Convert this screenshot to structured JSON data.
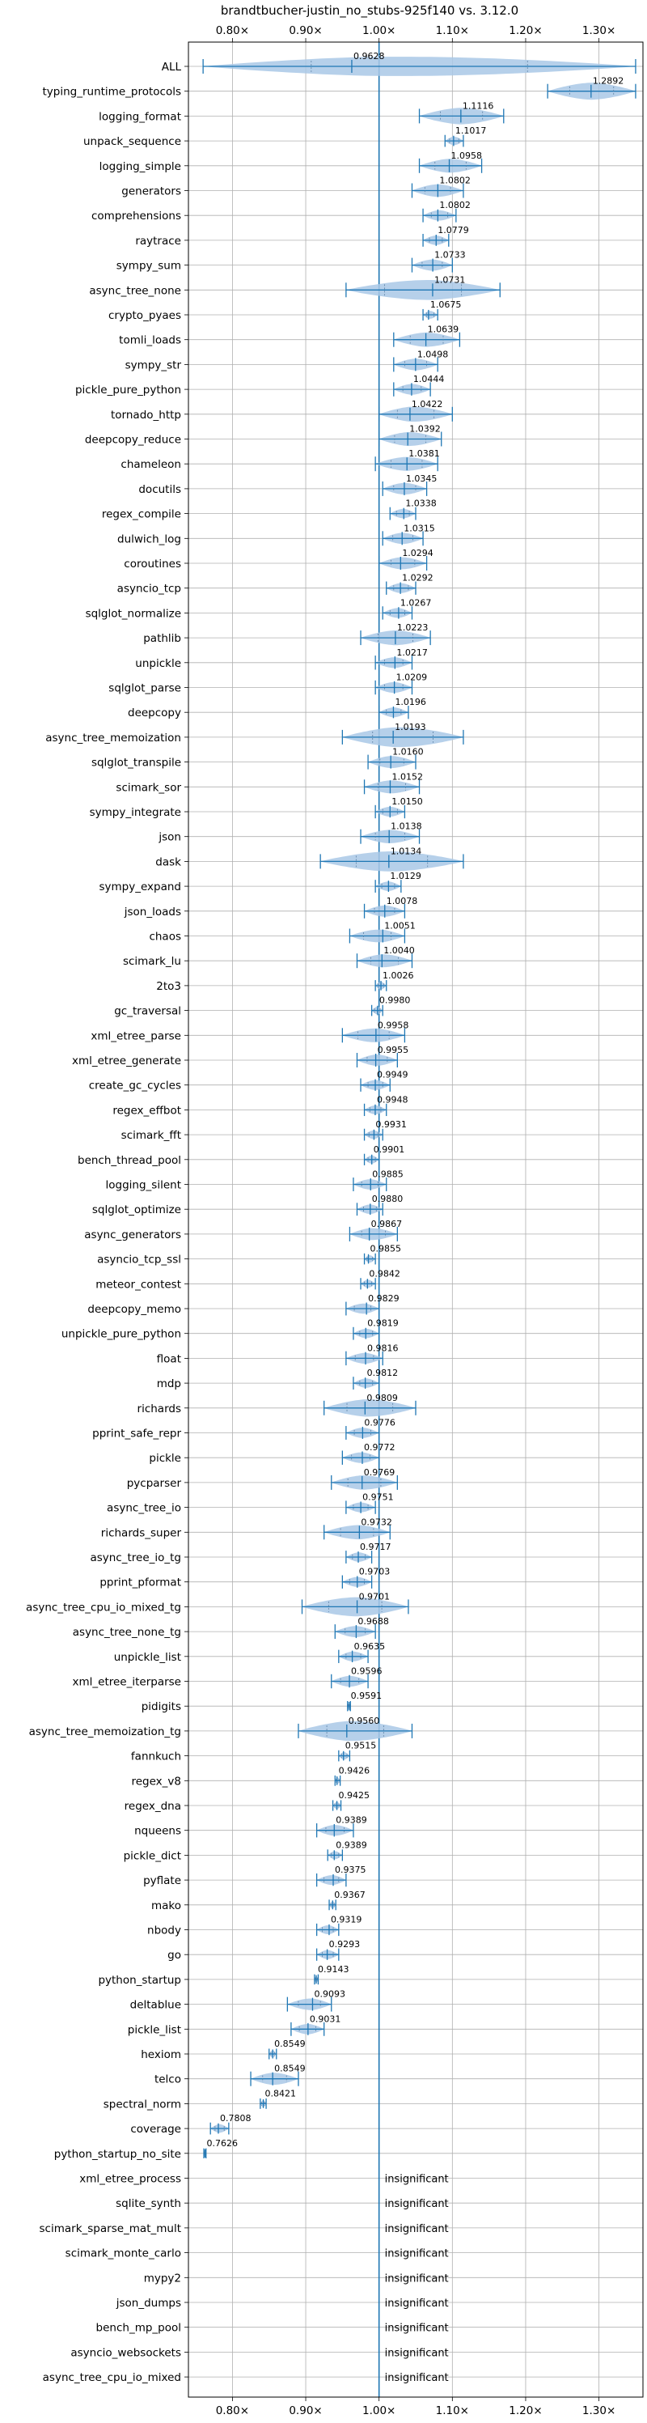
{
  "chart_data": {
    "type": "violin",
    "title": "brandtbucher-justin_no_stubs-925f140 vs. 3.12.0",
    "xlabel": "",
    "ylabel": "",
    "xlim": [
      0.74,
      1.36
    ],
    "xscale": "linear",
    "xticks": [
      0.8,
      0.9,
      1.0,
      1.1,
      1.2,
      1.3
    ],
    "xtick_labels": [
      "0.80×",
      "0.90×",
      "1.00×",
      "1.10×",
      "1.20×",
      "1.30×"
    ],
    "x_tick_axes": [
      "top",
      "bottom"
    ],
    "grid": true,
    "reference_line": 1.0,
    "colors": {
      "violin": "#a9c8e6",
      "line": "#1f77b4",
      "grid": "#b0b0b0"
    },
    "insignificant_label": "insignificant",
    "benchmarks": [
      {
        "name": "ALL",
        "value": 0.9628,
        "min": 0.76,
        "max": 1.35,
        "label": "0.9628"
      },
      {
        "name": "typing_runtime_protocols",
        "value": 1.2892,
        "min": 1.23,
        "max": 1.35,
        "label": "1.2892"
      },
      {
        "name": "logging_format",
        "value": 1.1116,
        "min": 1.055,
        "max": 1.17,
        "label": "1.1116"
      },
      {
        "name": "unpack_sequence",
        "value": 1.1017,
        "min": 1.09,
        "max": 1.115,
        "label": "1.1017"
      },
      {
        "name": "logging_simple",
        "value": 1.0958,
        "min": 1.055,
        "max": 1.14,
        "label": "1.0958"
      },
      {
        "name": "generators",
        "value": 1.0802,
        "min": 1.045,
        "max": 1.115,
        "label": "1.0802"
      },
      {
        "name": "comprehensions",
        "value": 1.0802,
        "min": 1.06,
        "max": 1.105,
        "label": "1.0802"
      },
      {
        "name": "raytrace",
        "value": 1.0779,
        "min": 1.06,
        "max": 1.095,
        "label": "1.0779"
      },
      {
        "name": "sympy_sum",
        "value": 1.0733,
        "min": 1.045,
        "max": 1.1,
        "label": "1.0733"
      },
      {
        "name": "async_tree_none",
        "value": 1.0731,
        "min": 0.955,
        "max": 1.165,
        "label": "1.0731"
      },
      {
        "name": "crypto_pyaes",
        "value": 1.0675,
        "min": 1.06,
        "max": 1.08,
        "label": "1.0675"
      },
      {
        "name": "tomli_loads",
        "value": 1.0639,
        "min": 1.02,
        "max": 1.11,
        "label": "1.0639"
      },
      {
        "name": "sympy_str",
        "value": 1.0498,
        "min": 1.02,
        "max": 1.08,
        "label": "1.0498"
      },
      {
        "name": "pickle_pure_python",
        "value": 1.0444,
        "min": 1.02,
        "max": 1.07,
        "label": "1.0444"
      },
      {
        "name": "tornado_http",
        "value": 1.0422,
        "min": 1.0,
        "max": 1.1,
        "label": "1.0422"
      },
      {
        "name": "deepcopy_reduce",
        "value": 1.0392,
        "min": 1.0,
        "max": 1.085,
        "label": "1.0392"
      },
      {
        "name": "chameleon",
        "value": 1.0381,
        "min": 0.995,
        "max": 1.08,
        "label": "1.0381"
      },
      {
        "name": "docutils",
        "value": 1.0345,
        "min": 1.005,
        "max": 1.065,
        "label": "1.0345"
      },
      {
        "name": "regex_compile",
        "value": 1.0338,
        "min": 1.015,
        "max": 1.05,
        "label": "1.0338"
      },
      {
        "name": "dulwich_log",
        "value": 1.0315,
        "min": 1.005,
        "max": 1.06,
        "label": "1.0315"
      },
      {
        "name": "coroutines",
        "value": 1.0294,
        "min": 1.0,
        "max": 1.065,
        "label": "1.0294"
      },
      {
        "name": "asyncio_tcp",
        "value": 1.0292,
        "min": 1.01,
        "max": 1.05,
        "label": "1.0292"
      },
      {
        "name": "sqlglot_normalize",
        "value": 1.0267,
        "min": 1.005,
        "max": 1.045,
        "label": "1.0267"
      },
      {
        "name": "pathlib",
        "value": 1.0223,
        "min": 0.975,
        "max": 1.07,
        "label": "1.0223"
      },
      {
        "name": "unpickle",
        "value": 1.0217,
        "min": 0.995,
        "max": 1.045,
        "label": "1.0217"
      },
      {
        "name": "sqlglot_parse",
        "value": 1.0209,
        "min": 0.995,
        "max": 1.045,
        "label": "1.0209"
      },
      {
        "name": "deepcopy",
        "value": 1.0196,
        "min": 1.0,
        "max": 1.04,
        "label": "1.0196"
      },
      {
        "name": "async_tree_memoization",
        "value": 1.0193,
        "min": 0.95,
        "max": 1.115,
        "label": "1.0193"
      },
      {
        "name": "sqlglot_transpile",
        "value": 1.016,
        "min": 0.985,
        "max": 1.05,
        "label": "1.0160"
      },
      {
        "name": "scimark_sor",
        "value": 1.0152,
        "min": 0.98,
        "max": 1.055,
        "label": "1.0152"
      },
      {
        "name": "sympy_integrate",
        "value": 1.015,
        "min": 0.995,
        "max": 1.035,
        "label": "1.0150"
      },
      {
        "name": "json",
        "value": 1.0138,
        "min": 0.975,
        "max": 1.055,
        "label": "1.0138"
      },
      {
        "name": "dask",
        "value": 1.0134,
        "min": 0.92,
        "max": 1.115,
        "label": "1.0134"
      },
      {
        "name": "sympy_expand",
        "value": 1.0129,
        "min": 0.995,
        "max": 1.03,
        "label": "1.0129"
      },
      {
        "name": "json_loads",
        "value": 1.0078,
        "min": 0.98,
        "max": 1.035,
        "label": "1.0078"
      },
      {
        "name": "chaos",
        "value": 1.0051,
        "min": 0.96,
        "max": 1.035,
        "label": "1.0051"
      },
      {
        "name": "scimark_lu",
        "value": 1.004,
        "min": 0.97,
        "max": 1.045,
        "label": "1.0040"
      },
      {
        "name": "2to3",
        "value": 1.0026,
        "min": 0.995,
        "max": 1.01,
        "label": "1.0026"
      },
      {
        "name": "gc_traversal",
        "value": 0.998,
        "min": 0.99,
        "max": 1.005,
        "label": "0.9980"
      },
      {
        "name": "xml_etree_parse",
        "value": 0.9958,
        "min": 0.95,
        "max": 1.035,
        "label": "0.9958"
      },
      {
        "name": "xml_etree_generate",
        "value": 0.9955,
        "min": 0.97,
        "max": 1.025,
        "label": "0.9955"
      },
      {
        "name": "create_gc_cycles",
        "value": 0.9949,
        "min": 0.975,
        "max": 1.015,
        "label": "0.9949"
      },
      {
        "name": "regex_effbot",
        "value": 0.9948,
        "min": 0.98,
        "max": 1.01,
        "label": "0.9948"
      },
      {
        "name": "scimark_fft",
        "value": 0.9931,
        "min": 0.98,
        "max": 1.005,
        "label": "0.9931"
      },
      {
        "name": "bench_thread_pool",
        "value": 0.9901,
        "min": 0.98,
        "max": 1.0,
        "label": "0.9901"
      },
      {
        "name": "logging_silent",
        "value": 0.9885,
        "min": 0.965,
        "max": 1.01,
        "label": "0.9885"
      },
      {
        "name": "sqlglot_optimize",
        "value": 0.988,
        "min": 0.97,
        "max": 1.005,
        "label": "0.9880"
      },
      {
        "name": "async_generators",
        "value": 0.9867,
        "min": 0.96,
        "max": 1.025,
        "label": "0.9867"
      },
      {
        "name": "asyncio_tcp_ssl",
        "value": 0.9855,
        "min": 0.98,
        "max": 0.995,
        "label": "0.9855"
      },
      {
        "name": "meteor_contest",
        "value": 0.9842,
        "min": 0.975,
        "max": 0.995,
        "label": "0.9842"
      },
      {
        "name": "deepcopy_memo",
        "value": 0.9829,
        "min": 0.955,
        "max": 1.0,
        "label": "0.9829"
      },
      {
        "name": "unpickle_pure_python",
        "value": 0.9819,
        "min": 0.965,
        "max": 1.0,
        "label": "0.9819"
      },
      {
        "name": "float",
        "value": 0.9816,
        "min": 0.955,
        "max": 1.005,
        "label": "0.9816"
      },
      {
        "name": "mdp",
        "value": 0.9812,
        "min": 0.965,
        "max": 1.0,
        "label": "0.9812"
      },
      {
        "name": "richards",
        "value": 0.9809,
        "min": 0.925,
        "max": 1.05,
        "label": "0.9809"
      },
      {
        "name": "pprint_safe_repr",
        "value": 0.9776,
        "min": 0.955,
        "max": 1.0,
        "label": "0.9776"
      },
      {
        "name": "pickle",
        "value": 0.9772,
        "min": 0.95,
        "max": 1.0,
        "label": "0.9772"
      },
      {
        "name": "pycparser",
        "value": 0.9769,
        "min": 0.935,
        "max": 1.025,
        "label": "0.9769"
      },
      {
        "name": "async_tree_io",
        "value": 0.9751,
        "min": 0.955,
        "max": 0.995,
        "label": "0.9751"
      },
      {
        "name": "richards_super",
        "value": 0.9732,
        "min": 0.925,
        "max": 1.015,
        "label": "0.9732"
      },
      {
        "name": "async_tree_io_tg",
        "value": 0.9717,
        "min": 0.955,
        "max": 0.99,
        "label": "0.9717"
      },
      {
        "name": "pprint_pformat",
        "value": 0.9703,
        "min": 0.95,
        "max": 0.99,
        "label": "0.9703"
      },
      {
        "name": "async_tree_cpu_io_mixed_tg",
        "value": 0.9701,
        "min": 0.895,
        "max": 1.04,
        "label": "0.9701"
      },
      {
        "name": "async_tree_none_tg",
        "value": 0.9688,
        "min": 0.94,
        "max": 0.995,
        "label": "0.9688"
      },
      {
        "name": "unpickle_list",
        "value": 0.9635,
        "min": 0.945,
        "max": 0.985,
        "label": "0.9635"
      },
      {
        "name": "xml_etree_iterparse",
        "value": 0.9596,
        "min": 0.935,
        "max": 0.985,
        "label": "0.9596"
      },
      {
        "name": "pidigits",
        "value": 0.9591,
        "min": 0.957,
        "max": 0.961,
        "label": "0.9591"
      },
      {
        "name": "async_tree_memoization_tg",
        "value": 0.956,
        "min": 0.89,
        "max": 1.045,
        "label": "0.9560"
      },
      {
        "name": "fannkuch",
        "value": 0.9515,
        "min": 0.945,
        "max": 0.96,
        "label": "0.9515"
      },
      {
        "name": "regex_v8",
        "value": 0.9426,
        "min": 0.94,
        "max": 0.947,
        "label": "0.9426"
      },
      {
        "name": "regex_dna",
        "value": 0.9425,
        "min": 0.937,
        "max": 0.948,
        "label": "0.9425"
      },
      {
        "name": "nqueens",
        "value": 0.9389,
        "min": 0.915,
        "max": 0.965,
        "label": "0.9389"
      },
      {
        "name": "pickle_dict",
        "value": 0.9389,
        "min": 0.93,
        "max": 0.95,
        "label": "0.9389"
      },
      {
        "name": "pyflate",
        "value": 0.9375,
        "min": 0.915,
        "max": 0.955,
        "label": "0.9375"
      },
      {
        "name": "mako",
        "value": 0.9367,
        "min": 0.932,
        "max": 0.941,
        "label": "0.9367"
      },
      {
        "name": "nbody",
        "value": 0.9319,
        "min": 0.915,
        "max": 0.945,
        "label": "0.9319"
      },
      {
        "name": "go",
        "value": 0.9293,
        "min": 0.915,
        "max": 0.945,
        "label": "0.9293"
      },
      {
        "name": "python_startup",
        "value": 0.9143,
        "min": 0.912,
        "max": 0.917,
        "label": "0.9143"
      },
      {
        "name": "deltablue",
        "value": 0.9093,
        "min": 0.875,
        "max": 0.935,
        "label": "0.9093"
      },
      {
        "name": "pickle_list",
        "value": 0.9031,
        "min": 0.88,
        "max": 0.925,
        "label": "0.9031"
      },
      {
        "name": "hexiom",
        "value": 0.8549,
        "min": 0.85,
        "max": 0.86,
        "label": "0.8549"
      },
      {
        "name": "telco",
        "value": 0.8549,
        "min": 0.825,
        "max": 0.89,
        "label": "0.8549"
      },
      {
        "name": "spectral_norm",
        "value": 0.8421,
        "min": 0.838,
        "max": 0.846,
        "label": "0.8421"
      },
      {
        "name": "coverage",
        "value": 0.7808,
        "min": 0.77,
        "max": 0.795,
        "label": "0.7808"
      },
      {
        "name": "python_startup_no_site",
        "value": 0.7626,
        "min": 0.761,
        "max": 0.764,
        "label": "0.7626"
      },
      {
        "name": "xml_etree_process",
        "insignificant": true
      },
      {
        "name": "sqlite_synth",
        "insignificant": true
      },
      {
        "name": "scimark_sparse_mat_mult",
        "insignificant": true
      },
      {
        "name": "scimark_monte_carlo",
        "insignificant": true
      },
      {
        "name": "mypy2",
        "insignificant": true
      },
      {
        "name": "json_dumps",
        "insignificant": true
      },
      {
        "name": "bench_mp_pool",
        "insignificant": true
      },
      {
        "name": "asyncio_websockets",
        "insignificant": true
      },
      {
        "name": "async_tree_cpu_io_mixed",
        "insignificant": true
      }
    ]
  }
}
